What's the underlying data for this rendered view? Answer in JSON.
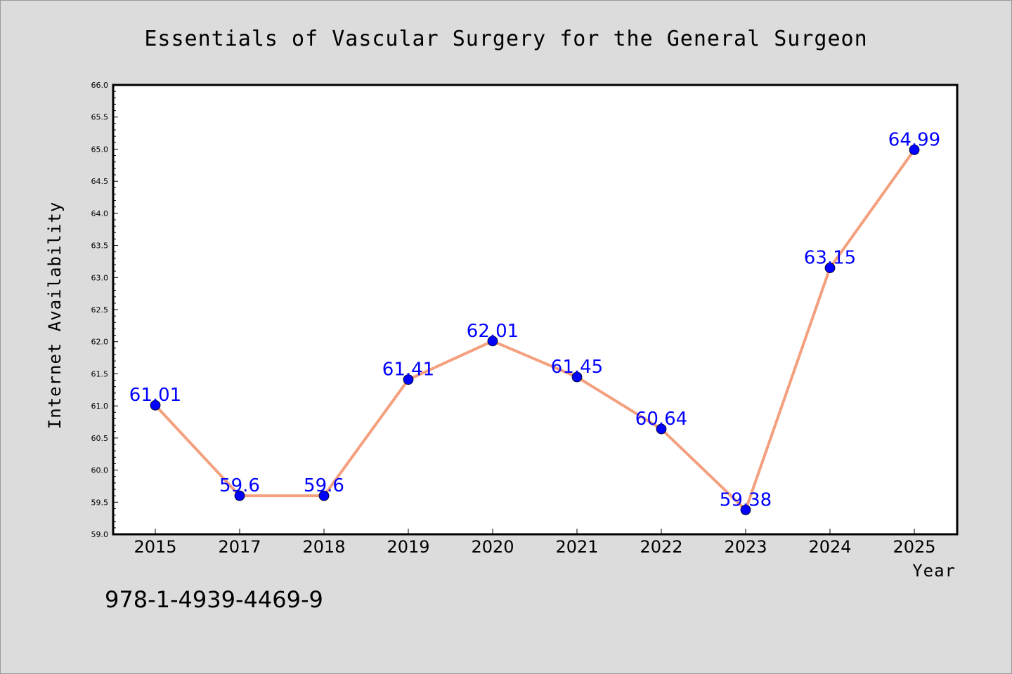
{
  "chart_data": {
    "type": "line",
    "title": "Essentials of Vascular Surgery for the General Surgeon",
    "xlabel": "Year",
    "ylabel": "Internet Availability",
    "categories": [
      "2015",
      "2017",
      "2018",
      "2019",
      "2020",
      "2021",
      "2022",
      "2023",
      "2024",
      "2025"
    ],
    "series": [
      {
        "values": [
          61.01,
          59.6,
          59.6,
          61.41,
          62.01,
          61.45,
          60.64,
          59.38,
          63.15,
          64.99
        ],
        "labels": [
          "61.01",
          "59.6",
          "59.6",
          "61.41",
          "62.01",
          "61.45",
          "60.64",
          "59.38",
          "63.15",
          "64.99"
        ]
      }
    ],
    "ylim": [
      59.0,
      66.0
    ],
    "yticks": [
      "59.0",
      "59.5",
      "60.0",
      "60.5",
      "61.0",
      "61.5",
      "62.0",
      "62.5",
      "63.0",
      "63.5",
      "64.0",
      "64.5",
      "65.0",
      "65.5",
      "66.0"
    ],
    "grid": false,
    "legend": "none",
    "colors": {
      "line": "#f4a07e",
      "marker": "#0000ff",
      "label": "#0000ff",
      "background": "#dcdcdc",
      "plot_background": "#ffffff"
    }
  },
  "footer": {
    "isbn": "978-1-4939-4469-9"
  }
}
